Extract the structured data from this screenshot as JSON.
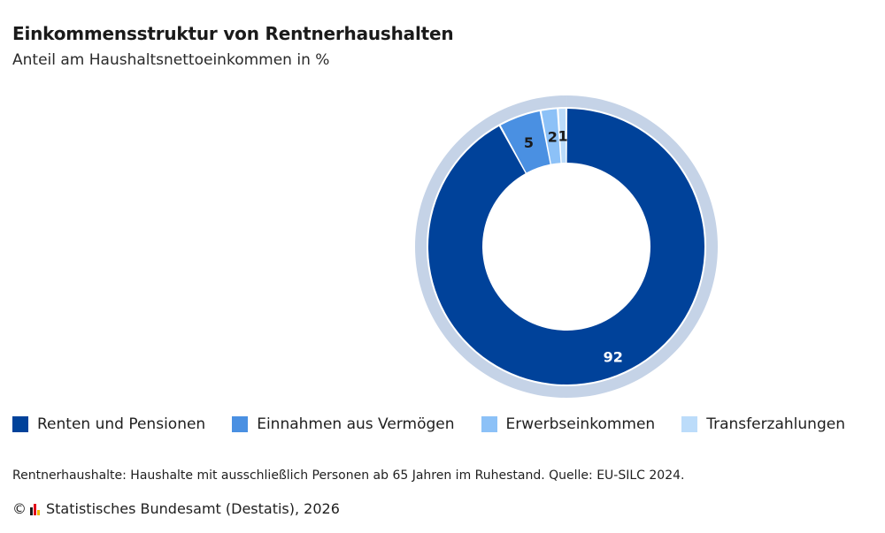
{
  "header": {
    "title": "Einkommensstruktur von Rentnerhaushalten",
    "subtitle": "Anteil am Haushaltsnettoeinkommen in %"
  },
  "chart_data": {
    "type": "pie",
    "variant": "donut",
    "title": "Einkommensstruktur von Rentnerhaushalten",
    "subtitle": "Anteil am Haushaltsnettoeinkommen in %",
    "categories": [
      "Renten und Pensionen",
      "Einnahmen aus Vermögen",
      "Erwerbseinkommen",
      "Transferzahlungen"
    ],
    "values": [
      92,
      5,
      2,
      1
    ],
    "data_labels": [
      "92",
      "5",
      "2",
      "1"
    ],
    "colors": [
      "#00429a",
      "#4a90e2",
      "#8cc1f7",
      "#bcdcfa"
    ],
    "label_colors": [
      "#ffffff",
      "#1a1a1a",
      "#1a1a1a",
      "#1a1a1a"
    ],
    "ring_color": "#c5d3e7",
    "legend_position": "bottom-left"
  },
  "legend": {
    "items": [
      {
        "label": "Renten und Pensionen",
        "color": "#00429a"
      },
      {
        "label": "Einnahmen aus Vermögen",
        "color": "#4a90e2"
      },
      {
        "label": "Erwerbseinkommen",
        "color": "#8cc1f7"
      },
      {
        "label": "Transferzahlungen",
        "color": "#bcdcfa"
      }
    ]
  },
  "footer": {
    "note": "Rentnerhaushalte: Haushalte mit ausschließlich Personen ab 65 Jahren im Ruhestand. Quelle: EU-SILC 2024.",
    "copyright_symbol": "©",
    "credit": "Statistisches Bundesamt (Destatis), 2026",
    "logo_colors": [
      "#1a1a1a",
      "#e2001a",
      "#f6b800"
    ]
  }
}
